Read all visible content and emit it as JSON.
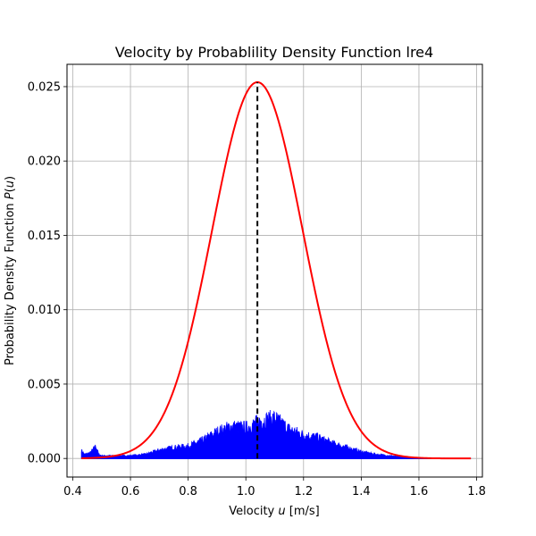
{
  "chart_data": {
    "type": "line",
    "title": "Velocity by Probablility Density Function lre4",
    "xlabel": {
      "prefix": "Velocity ",
      "var": "u",
      "suffix": " [m/s]"
    },
    "ylabel": {
      "prefix": "Probability Density Function ",
      "var": "P",
      "open": "(",
      "arg": "u",
      "close": ")"
    },
    "xlim": [
      0.38,
      1.82
    ],
    "ylim": [
      -0.00125,
      0.0265
    ],
    "xticks": [
      0.4,
      0.6,
      0.8,
      1.0,
      1.2,
      1.4,
      1.6,
      1.8
    ],
    "xtick_labels": [
      "0.4",
      "0.6",
      "0.8",
      "1.0",
      "1.2",
      "1.4",
      "1.6",
      "1.8"
    ],
    "yticks": [
      0.0,
      0.005,
      0.01,
      0.015,
      0.02,
      0.025
    ],
    "ytick_labels": [
      "0.000",
      "0.005",
      "0.010",
      "0.015",
      "0.020",
      "0.025"
    ],
    "grid": true,
    "colors": {
      "pdf_curve": "#ff0000",
      "histogram": "#0000ff",
      "mean_line": "#000000",
      "grid": "#b0b0b0"
    },
    "series": [
      {
        "kind": "normal-curve",
        "color": "#ff0000",
        "mean": 1.04,
        "std": 0.157,
        "peak": 0.0253,
        "x_range": [
          0.43,
          1.78
        ]
      },
      {
        "kind": "histogram-envelope",
        "color": "#0000ff",
        "x": [
          0.43,
          0.44,
          0.46,
          0.48,
          0.49,
          0.5,
          0.55,
          0.6,
          0.65,
          0.7,
          0.75,
          0.8,
          0.85,
          0.9,
          0.95,
          1.0,
          1.05,
          1.1,
          1.15,
          1.2,
          1.25,
          1.3,
          1.35,
          1.4,
          1.45,
          1.5,
          1.55,
          1.6,
          1.7,
          1.78
        ],
        "y": [
          0.0006,
          0.0003,
          0.0004,
          0.0009,
          0.0003,
          0.0002,
          0.0002,
          0.0002,
          0.0003,
          0.0006,
          0.0008,
          0.0009,
          0.0013,
          0.0019,
          0.0023,
          0.0022,
          0.0027,
          0.0029,
          0.0021,
          0.0017,
          0.0015,
          0.0011,
          0.0008,
          0.0005,
          0.0003,
          0.0002,
          0.0001,
          5e-05,
          2e-05,
          0.0
        ]
      },
      {
        "kind": "vertical-line",
        "color": "#000000",
        "dashed": true,
        "x": 1.04,
        "y_range": [
          0.0,
          0.0253
        ]
      }
    ]
  }
}
